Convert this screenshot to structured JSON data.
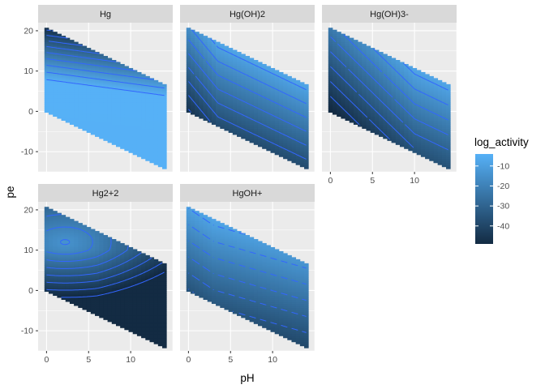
{
  "chart_data": {
    "type": "heatmap",
    "subtype": "faceted filled contour (raster + contour lines)",
    "xlabel": "pH",
    "ylabel": "pe",
    "xlim": [
      -1,
      15
    ],
    "ylim": [
      -15,
      22
    ],
    "x_ticks": [
      0,
      5,
      10
    ],
    "y_ticks": [
      -10,
      0,
      10,
      20
    ],
    "domain": {
      "pH_range": [
        0,
        14
      ],
      "pe_upper_at_pH0": 20.75,
      "pe_upper_slope": -1.0,
      "pe_lower_at_pH0": 0.0,
      "pe_lower_slope": -1.0
    },
    "legend": {
      "title": "log_activity",
      "labels": [
        "-10",
        "-20",
        "-30",
        "-40"
      ],
      "values": [
        -10,
        -20,
        -30,
        -40
      ],
      "range": [
        -49,
        -4
      ],
      "colors": {
        "high": "#56B1F7",
        "low": "#132B43"
      }
    },
    "grid": true,
    "contour_line_color": "#3366FF",
    "facets": [
      {
        "name": "Hg",
        "label": "Hg",
        "description": "max ~ -4 (light) over lower region; decreases toward upper boundary (pe high)",
        "min": -46,
        "max": -4
      },
      {
        "name": "Hg(OH)2",
        "label": "Hg(OH)2",
        "description": "max near upper boundary, decreasing toward lower boundary",
        "min": -49,
        "max": -8
      },
      {
        "name": "Hg(OH)3-",
        "label": "Hg(OH)3-",
        "description": "max at high pH upper boundary; low at low pH / low pe",
        "min": -49,
        "max": -8
      },
      {
        "name": "Hg2+2",
        "label": "Hg2+2",
        "description": "max near pH 2, pe 12; decreasing toward high pH and low pe",
        "min": -49,
        "max": -14
      },
      {
        "name": "HgOH+",
        "label": "HgOH+",
        "description": "max near pH 3, pe 18; decreasing toward low pe",
        "min": -42,
        "max": -8
      }
    ]
  }
}
